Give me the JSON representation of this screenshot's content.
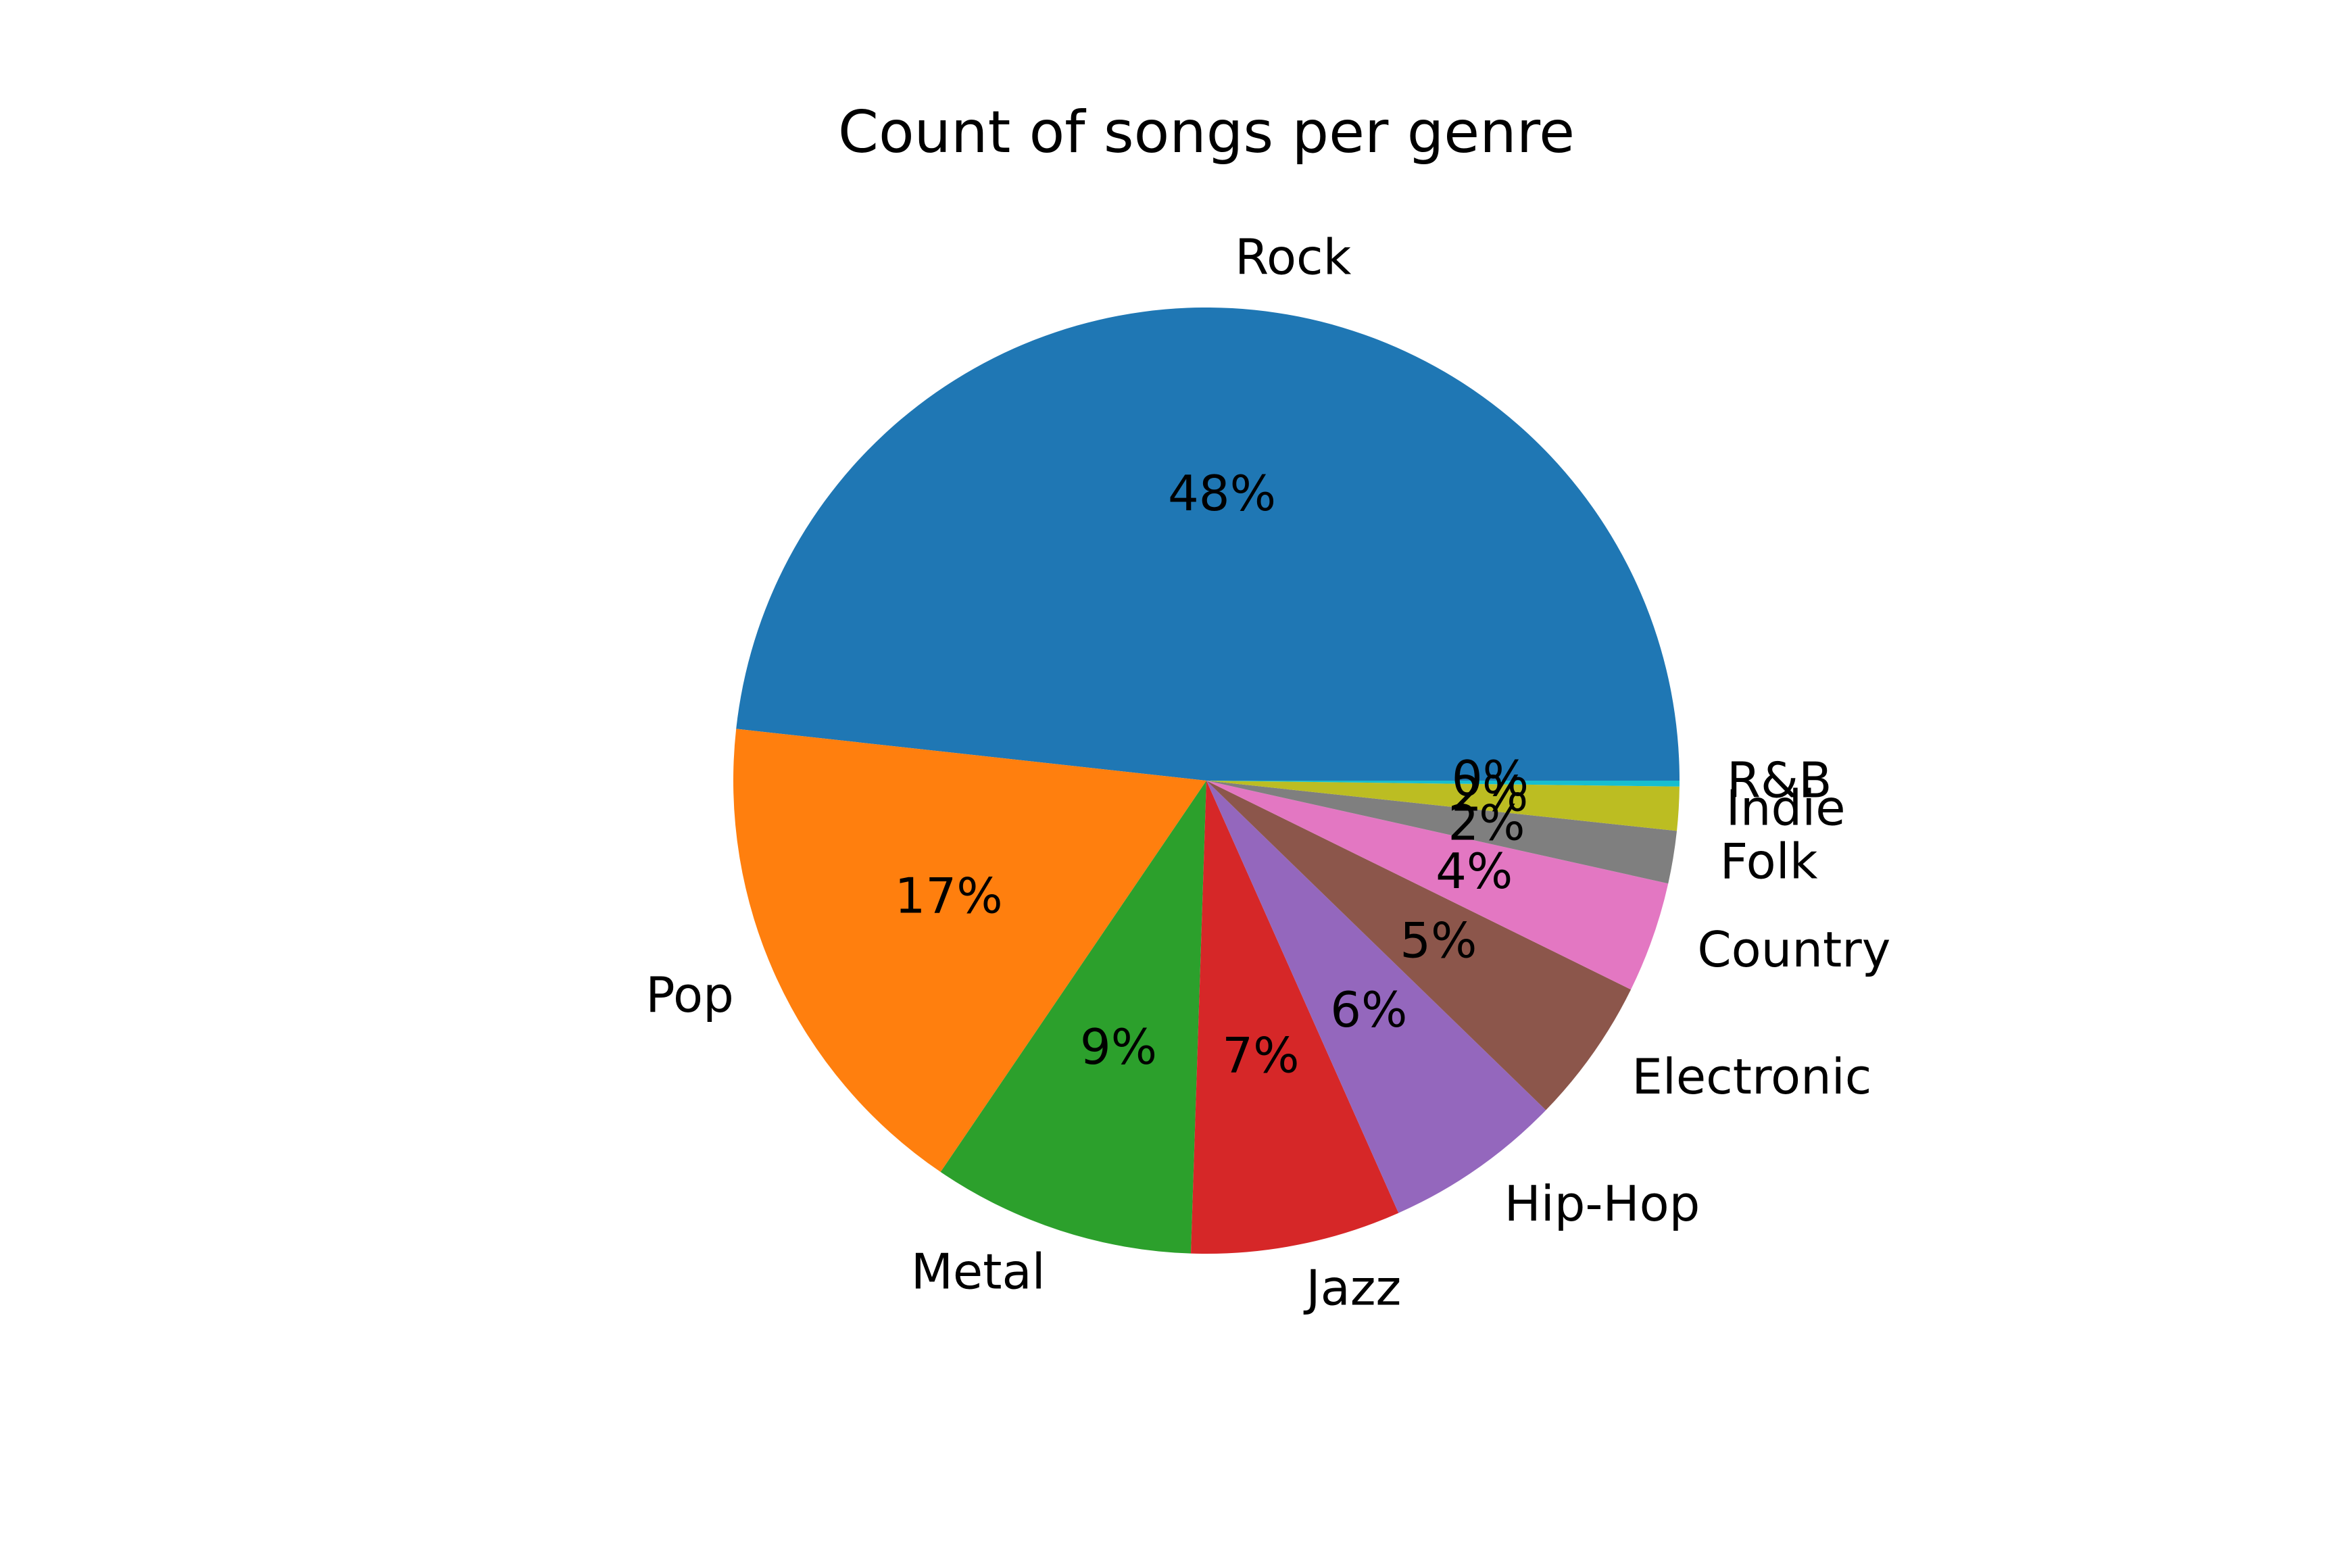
{
  "chart_data": {
    "type": "pie",
    "title": "Count of songs per genre",
    "start_angle_deg": 0,
    "direction": "counterclockwise",
    "slices": [
      {
        "label": "Rock",
        "value": 48.4,
        "pct_label": "48%",
        "color": "#1f77b4"
      },
      {
        "label": "Pop",
        "value": 17.3,
        "pct_label": "17%",
        "color": "#ff7f0e"
      },
      {
        "label": "Metal",
        "value": 9.0,
        "pct_label": "9%",
        "color": "#2ca02c"
      },
      {
        "label": "Jazz",
        "value": 7.2,
        "pct_label": "7%",
        "color": "#d62728"
      },
      {
        "label": "Hip-Hop",
        "value": 6.1,
        "pct_label": "6%",
        "color": "#9467bd"
      },
      {
        "label": "Electronic",
        "value": 5.0,
        "pct_label": "5%",
        "color": "#8c564b"
      },
      {
        "label": "Country",
        "value": 3.8,
        "pct_label": "4%",
        "color": "#e377c2"
      },
      {
        "label": "Folk",
        "value": 1.8,
        "pct_label": "2%",
        "color": "#7f7f7f"
      },
      {
        "label": "Indie",
        "value": 1.5,
        "pct_label": "2%",
        "color": "#bcbd22"
      },
      {
        "label": "R&B",
        "value": 0.2,
        "pct_label": "0%",
        "color": "#17becf"
      }
    ]
  }
}
